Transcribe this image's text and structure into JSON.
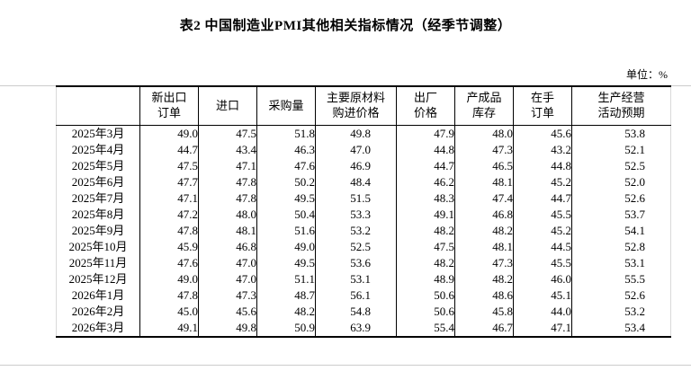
{
  "page": {
    "title": "表2 中国制造业PMI其他相关指标情况（经季节调整）",
    "unit_label": "单位：%"
  },
  "colors": {
    "text": "#000000",
    "border_strong": "#000000",
    "border_light": "#cccccc"
  },
  "table": {
    "corner_label": "",
    "columns": [
      "新出口\n订单",
      "进口",
      "采购量",
      "主要原材料\n购进价格",
      "出厂\n价格",
      "产成品\n库存",
      "在手\n订单",
      "生产经营\n活动预期"
    ],
    "wide_column_indexes": [
      3,
      7
    ],
    "rows": [
      {
        "month": "2025年3月",
        "values": [
          "49.0",
          "47.5",
          "51.8",
          "49.8",
          "47.9",
          "48.0",
          "45.6",
          "53.8"
        ]
      },
      {
        "month": "2025年4月",
        "values": [
          "44.7",
          "43.4",
          "46.3",
          "47.0",
          "44.8",
          "47.3",
          "43.2",
          "52.1"
        ]
      },
      {
        "month": "2025年5月",
        "values": [
          "47.5",
          "47.1",
          "47.6",
          "46.9",
          "44.7",
          "46.5",
          "44.8",
          "52.5"
        ]
      },
      {
        "month": "2025年6月",
        "values": [
          "47.7",
          "47.8",
          "50.2",
          "48.4",
          "46.2",
          "48.1",
          "45.2",
          "52.0"
        ]
      },
      {
        "month": "2025年7月",
        "values": [
          "47.1",
          "47.8",
          "49.5",
          "51.5",
          "48.3",
          "47.4",
          "44.7",
          "52.6"
        ]
      },
      {
        "month": "2025年8月",
        "values": [
          "47.2",
          "48.0",
          "50.4",
          "53.3",
          "49.1",
          "46.8",
          "45.5",
          "53.7"
        ]
      },
      {
        "month": "2025年9月",
        "values": [
          "47.8",
          "48.1",
          "51.6",
          "53.2",
          "48.2",
          "48.2",
          "45.2",
          "54.1"
        ]
      },
      {
        "month": "2025年10月",
        "values": [
          "45.9",
          "46.8",
          "49.0",
          "52.5",
          "47.5",
          "48.1",
          "44.5",
          "52.8"
        ]
      },
      {
        "month": "2025年11月",
        "values": [
          "47.6",
          "47.0",
          "49.5",
          "53.6",
          "48.2",
          "47.3",
          "45.5",
          "53.1"
        ]
      },
      {
        "month": "2025年12月",
        "values": [
          "49.0",
          "47.0",
          "51.1",
          "53.1",
          "48.9",
          "48.2",
          "46.0",
          "55.5"
        ]
      },
      {
        "month": "2026年1月",
        "values": [
          "47.8",
          "47.3",
          "48.7",
          "56.1",
          "50.6",
          "48.6",
          "45.1",
          "52.6"
        ]
      },
      {
        "month": "2026年2月",
        "values": [
          "45.0",
          "45.6",
          "48.2",
          "54.8",
          "50.6",
          "45.8",
          "44.0",
          "53.2"
        ]
      },
      {
        "month": "2026年3月",
        "values": [
          "49.1",
          "49.8",
          "50.9",
          "63.9",
          "55.4",
          "46.7",
          "47.1",
          "53.4"
        ]
      }
    ]
  }
}
